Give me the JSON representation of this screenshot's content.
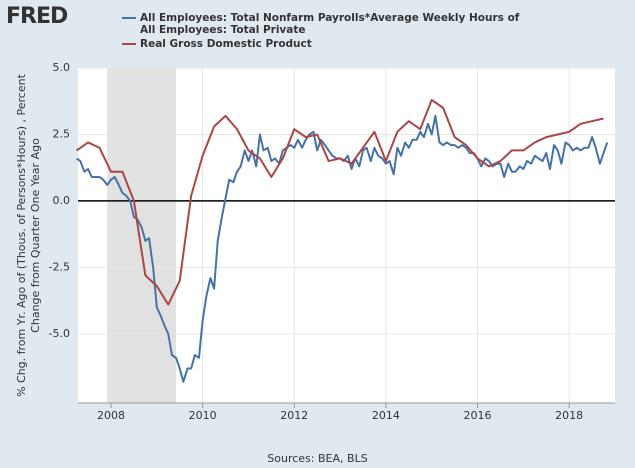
{
  "logo": "FRED",
  "chart_data": {
    "type": "line",
    "y_label_lines": [
      "% Chg. from Yr. Ago of (Thous. of Persons*Hours) , Percent",
      "Change from Quarter One Year Ago"
    ],
    "source": "Sources: BEA, BLS",
    "xlim": [
      2007.28,
      2019.0
    ],
    "xticks": [
      2008,
      2010,
      2012,
      2014,
      2016,
      2018
    ],
    "ylim": [
      -7.6,
      5.0
    ],
    "yticks": [
      {
        "value": 5,
        "label": "5.0"
      },
      2.5,
      {
        "value": 0,
        "label": "0.0"
      },
      -2.5,
      {
        "value": -5,
        "label": "-5.0"
      }
    ],
    "grid": true,
    "recession_shading": [
      {
        "start": 2007.92,
        "end": 2009.42
      }
    ],
    "series": [
      {
        "name": "All Employees: Total Nonfarm Payrolls*Average Weekly Hours of All Employees: Total Private",
        "color": "#4572a7",
        "x": [
          2007.25,
          2007.33,
          2007.42,
          2007.5,
          2007.58,
          2007.67,
          2007.75,
          2007.83,
          2007.92,
          2008.0,
          2008.08,
          2008.17,
          2008.25,
          2008.33,
          2008.42,
          2008.5,
          2008.58,
          2008.67,
          2008.75,
          2008.83,
          2008.92,
          2009.0,
          2009.08,
          2009.17,
          2009.25,
          2009.33,
          2009.42,
          2009.5,
          2009.58,
          2009.67,
          2009.75,
          2009.83,
          2009.92,
          2010.0,
          2010.08,
          2010.17,
          2010.25,
          2010.33,
          2010.42,
          2010.5,
          2010.58,
          2010.67,
          2010.75,
          2010.83,
          2010.92,
          2011.0,
          2011.08,
          2011.17,
          2011.25,
          2011.33,
          2011.42,
          2011.5,
          2011.58,
          2011.67,
          2011.75,
          2011.83,
          2011.92,
          2012.0,
          2012.08,
          2012.17,
          2012.25,
          2012.33,
          2012.42,
          2012.5,
          2012.58,
          2012.67,
          2012.75,
          2012.83,
          2012.92,
          2013.0,
          2013.08,
          2013.17,
          2013.25,
          2013.33,
          2013.42,
          2013.5,
          2013.58,
          2013.67,
          2013.75,
          2013.83,
          2013.92,
          2014.0,
          2014.08,
          2014.17,
          2014.25,
          2014.33,
          2014.42,
          2014.5,
          2014.58,
          2014.67,
          2014.75,
          2014.83,
          2014.92,
          2015.0,
          2015.08,
          2015.17,
          2015.25,
          2015.33,
          2015.42,
          2015.5,
          2015.58,
          2015.67,
          2015.75,
          2015.83,
          2015.92,
          2016.0,
          2016.08,
          2016.17,
          2016.25,
          2016.33,
          2016.42,
          2016.5,
          2016.58,
          2016.67,
          2016.75,
          2016.83,
          2016.92,
          2017.0,
          2017.08,
          2017.17,
          2017.25,
          2017.33,
          2017.42,
          2017.5,
          2017.58,
          2017.67,
          2017.75,
          2017.83,
          2017.92,
          2018.0,
          2018.08,
          2018.17,
          2018.25,
          2018.33,
          2018.42,
          2018.5,
          2018.58,
          2018.67,
          2018.75,
          2018.83
        ],
        "values": [
          1.6,
          1.5,
          1.1,
          1.2,
          0.9,
          0.9,
          0.9,
          0.8,
          0.6,
          0.8,
          0.9,
          0.6,
          0.3,
          0.2,
          0.0,
          -0.6,
          -0.7,
          -1.0,
          -1.5,
          -1.4,
          -2.5,
          -4.0,
          -4.3,
          -4.7,
          -5.0,
          -5.8,
          -5.9,
          -6.3,
          -6.8,
          -6.3,
          -6.3,
          -5.8,
          -5.9,
          -4.5,
          -3.6,
          -2.9,
          -3.3,
          -1.5,
          -0.6,
          0.1,
          0.8,
          0.7,
          1.1,
          1.3,
          1.9,
          1.5,
          1.9,
          1.3,
          2.5,
          1.9,
          2.0,
          1.5,
          1.6,
          1.4,
          1.9,
          2.0,
          2.1,
          2.0,
          2.3,
          2.0,
          2.3,
          2.5,
          2.6,
          1.9,
          2.3,
          2.1,
          1.9,
          1.7,
          1.6,
          1.6,
          1.5,
          1.7,
          1.2,
          1.6,
          1.3,
          1.9,
          2.0,
          1.5,
          2.0,
          1.7,
          1.6,
          1.4,
          1.5,
          1.0,
          2.0,
          1.7,
          2.2,
          2.0,
          2.3,
          2.3,
          2.6,
          2.4,
          2.9,
          2.5,
          3.2,
          2.2,
          2.1,
          2.2,
          2.1,
          2.1,
          2.0,
          2.1,
          2.0,
          1.8,
          1.8,
          1.6,
          1.3,
          1.6,
          1.5,
          1.3,
          1.4,
          1.4,
          0.9,
          1.4,
          1.1,
          1.1,
          1.3,
          1.2,
          1.5,
          1.4,
          1.7,
          1.6,
          1.5,
          1.8,
          1.2,
          2.1,
          1.9,
          1.4,
          2.2,
          2.1,
          1.9,
          2.0,
          1.9,
          2.0,
          2.0,
          2.4,
          2.0,
          1.4,
          1.8,
          2.2
        ]
      },
      {
        "name": "Real Gross Domestic Product",
        "color": "#aa4643",
        "x": [
          2007.25,
          2007.5,
          2007.75,
          2008.0,
          2008.25,
          2008.5,
          2008.75,
          2009.0,
          2009.25,
          2009.5,
          2009.75,
          2010.0,
          2010.25,
          2010.5,
          2010.75,
          2011.0,
          2011.25,
          2011.5,
          2011.75,
          2012.0,
          2012.25,
          2012.5,
          2012.75,
          2013.0,
          2013.25,
          2013.5,
          2013.75,
          2014.0,
          2014.25,
          2014.5,
          2014.75,
          2015.0,
          2015.25,
          2015.5,
          2015.75,
          2016.0,
          2016.25,
          2016.5,
          2016.75,
          2017.0,
          2017.25,
          2017.5,
          2017.75,
          2018.0,
          2018.25,
          2018.5,
          2018.75
        ],
        "values": [
          1.9,
          2.2,
          2.0,
          1.1,
          1.1,
          0.0,
          -2.8,
          -3.2,
          -3.9,
          -3.0,
          0.2,
          1.7,
          2.8,
          3.2,
          2.7,
          1.9,
          1.6,
          0.9,
          1.6,
          2.7,
          2.4,
          2.5,
          1.5,
          1.6,
          1.4,
          2.0,
          2.6,
          1.5,
          2.6,
          3.0,
          2.7,
          3.8,
          3.5,
          2.4,
          2.1,
          1.6,
          1.3,
          1.5,
          1.9,
          1.9,
          2.2,
          2.4,
          2.5,
          2.6,
          2.9,
          3.0,
          3.1
        ]
      }
    ]
  }
}
